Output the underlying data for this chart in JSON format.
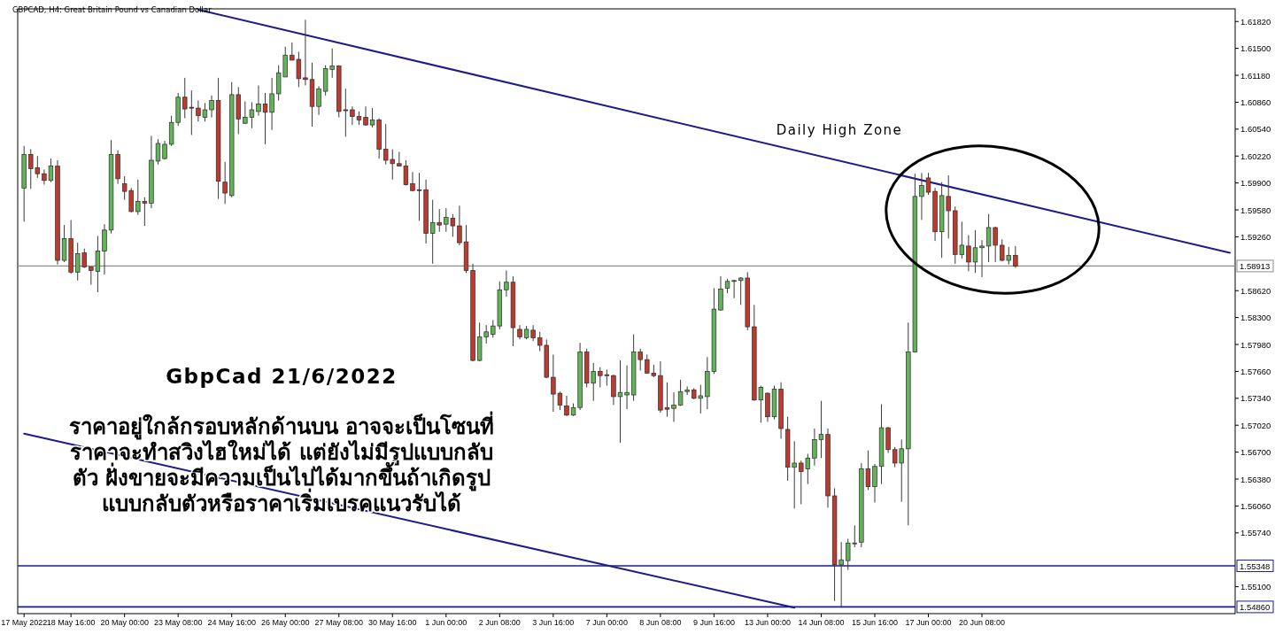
{
  "chart_data": {
    "type": "candlestick",
    "title": "GBPCAD, H4:  Great Britain Pound vs Canadian Dollar",
    "subtitle": "GbpCad 21/6/2022",
    "annotations": [
      "Daily High Zone",
      "ราคาอยู่ใกล้กรอบหลักด้านบน อาจจะเป็นโซนที่\nราคาจะทำสวิงไฮใหม่ได้ แต่ยังไม่มีรูปแบบกลับ\nตัว ฝั่งขายจะมีความเป็นไปได้มากขึ้นถ้าเกิดรูป\nแบบกลับตัวหรือราคาเริ่มเบรคแนวรับได้"
    ],
    "categories": [
      "17 May 2022",
      null,
      null,
      null,
      null,
      null,
      null,
      "18 May 16:00",
      null,
      null,
      null,
      null,
      null,
      null,
      null,
      "20 May 00:00",
      null,
      null,
      null,
      null,
      null,
      null,
      null,
      "23 May 08:00",
      null,
      null,
      null,
      null,
      null,
      null,
      null,
      "24 May 16:00",
      null,
      null,
      null,
      null,
      null,
      null,
      null,
      "26 May 00:00",
      null,
      null,
      null,
      null,
      null,
      null,
      null,
      "27 May 08:00",
      null,
      null,
      null,
      null,
      null,
      null,
      null,
      "30 May 16:00",
      null,
      null,
      null,
      null,
      null,
      null,
      null,
      "1 Jun 00:00",
      null,
      null,
      null,
      null,
      null,
      null,
      null,
      "2 Jun 08:00",
      null,
      null,
      null,
      null,
      null,
      null,
      null,
      "3 Jun 16:00",
      null,
      null,
      null,
      null,
      null,
      null,
      null,
      "7 Jun 00:00",
      null,
      null,
      null,
      null,
      null,
      null,
      null,
      "8 Jun 08:00",
      null,
      null,
      null,
      null,
      null,
      null,
      null,
      "9 Jun 16:00",
      null,
      null,
      null,
      null,
      null,
      null,
      null,
      "13 Jun 00:00",
      null,
      null,
      null,
      null,
      null,
      null,
      null,
      "14 Jun 08:00",
      null,
      null,
      null,
      null,
      null,
      null,
      null,
      "15 Jun 16:00",
      null,
      null,
      null,
      null,
      null,
      null,
      null,
      "17 Jun 00:00",
      null,
      null,
      null,
      null,
      null,
      null,
      null,
      "20 Jun 08:00",
      null,
      null,
      null,
      null,
      null,
      null,
      null,
      null,
      null,
      null,
      null,
      null,
      null,
      null,
      null,
      null,
      null,
      null,
      null,
      null,
      null,
      null,
      null,
      null,
      null,
      null,
      null,
      null,
      null,
      null,
      null,
      null,
      null,
      null,
      null,
      null,
      null
    ],
    "ohlc": [
      [
        1.5984,
        1.6034,
        1.5944,
        1.6024
      ],
      [
        1.6024,
        1.603,
        1.5983,
        1.6007
      ],
      [
        1.6008,
        1.6022,
        1.5996,
        1.6001
      ],
      [
        1.6001,
        1.6006,
        1.5988,
        1.5993
      ],
      [
        1.5993,
        1.6019,
        1.5991,
        1.601
      ],
      [
        1.601,
        1.6017,
        1.5893,
        1.5898
      ],
      [
        1.5898,
        1.594,
        1.5896,
        1.5924
      ],
      [
        1.5924,
        1.5946,
        1.5882,
        1.5884
      ],
      [
        1.5884,
        1.5919,
        1.5874,
        1.5906
      ],
      [
        1.5907,
        1.5912,
        1.5889,
        1.589
      ],
      [
        1.589,
        1.589,
        1.5869,
        1.5886
      ],
      [
        1.5885,
        1.5927,
        1.586,
        1.5909
      ],
      [
        1.5909,
        1.5941,
        1.5881,
        1.5934
      ],
      [
        1.5934,
        1.6041,
        1.593,
        1.6024
      ],
      [
        1.6024,
        1.6029,
        1.5989,
        1.5995
      ],
      [
        1.5989,
        1.5998,
        1.597,
        1.598
      ],
      [
        1.5981,
        1.5984,
        1.5955,
        1.5956
      ],
      [
        1.5956,
        1.5994,
        1.5952,
        1.5968
      ],
      [
        1.5968,
        1.5973,
        1.5939,
        1.5966
      ],
      [
        1.5966,
        1.6046,
        1.596,
        1.6017
      ],
      [
        1.6016,
        1.6042,
        1.6012,
        1.6037
      ],
      [
        1.6019,
        1.604,
        1.6018,
        1.6036
      ],
      [
        1.6036,
        1.607,
        1.6034,
        1.6062
      ],
      [
        1.6062,
        1.6097,
        1.6058,
        1.6092
      ],
      [
        1.6092,
        1.6115,
        1.6067,
        1.6078
      ],
      [
        1.608,
        1.61,
        1.6047,
        1.6079
      ],
      [
        1.6079,
        1.6088,
        1.6063,
        1.607
      ],
      [
        1.6068,
        1.6085,
        1.6063,
        1.6077
      ],
      [
        1.6077,
        1.6094,
        1.6068,
        1.6088
      ],
      [
        1.6088,
        1.6115,
        1.5971,
        1.5992
      ],
      [
        1.5991,
        1.6015,
        1.5965,
        1.5978
      ],
      [
        1.5975,
        1.611,
        1.5973,
        1.6095
      ],
      [
        1.6095,
        1.6104,
        1.6048,
        1.6066
      ],
      [
        1.6061,
        1.6087,
        1.606,
        1.6068
      ],
      [
        1.6068,
        1.6086,
        1.6055,
        1.6077
      ],
      [
        1.6075,
        1.6106,
        1.607,
        1.6084
      ],
      [
        1.6084,
        1.6097,
        1.6036,
        1.6074
      ],
      [
        1.6074,
        1.6115,
        1.6053,
        1.6096
      ],
      [
        1.6096,
        1.613,
        1.6088,
        1.6121
      ],
      [
        1.6116,
        1.6152,
        1.6116,
        1.6142
      ],
      [
        1.6142,
        1.6157,
        1.6136,
        1.6136
      ],
      [
        1.6137,
        1.6146,
        1.6104,
        1.6114
      ],
      [
        1.6115,
        1.6184,
        1.6106,
        1.6113
      ],
      [
        1.6113,
        1.6133,
        1.6057,
        1.6081
      ],
      [
        1.6081,
        1.6105,
        1.6071,
        1.6102
      ],
      [
        1.6099,
        1.613,
        1.6094,
        1.6126
      ],
      [
        1.6125,
        1.615,
        1.6115,
        1.6129
      ],
      [
        1.6129,
        1.613,
        1.6068,
        1.6075
      ],
      [
        1.6077,
        1.6102,
        1.6045,
        1.6076
      ],
      [
        1.6077,
        1.6081,
        1.6059,
        1.6069
      ],
      [
        1.6069,
        1.6075,
        1.6059,
        1.6065
      ],
      [
        1.6068,
        1.6081,
        1.6058,
        1.6059
      ],
      [
        1.6059,
        1.6079,
        1.6056,
        1.6065
      ],
      [
        1.6065,
        1.6067,
        1.6019,
        1.603
      ],
      [
        1.603,
        1.606,
        1.6012,
        1.6017
      ],
      [
        1.6018,
        1.603,
        1.5994,
        1.6013
      ],
      [
        1.6013,
        1.6027,
        1.601,
        1.601
      ],
      [
        1.601,
        1.6017,
        1.5987,
        1.5988
      ],
      [
        1.5989,
        1.6003,
        1.598,
        1.5981
      ],
      [
        1.5982,
        1.6002,
        1.5945,
        1.5981
      ],
      [
        1.5982,
        1.5994,
        1.5918,
        1.593
      ],
      [
        1.593,
        1.597,
        1.5894,
        1.5943
      ],
      [
        1.5943,
        1.5959,
        1.5932,
        1.594
      ],
      [
        1.5941,
        1.596,
        1.5932,
        1.5949
      ],
      [
        1.5948,
        1.5953,
        1.5926,
        1.5939
      ],
      [
        1.5939,
        1.5963,
        1.5916,
        1.5919
      ],
      [
        1.592,
        1.594,
        1.5883,
        1.5886
      ],
      [
        1.5886,
        1.5894,
        1.5778,
        1.5779
      ],
      [
        1.5779,
        1.5824,
        1.5778,
        1.5807
      ],
      [
        1.5807,
        1.5821,
        1.5799,
        1.5813
      ],
      [
        1.581,
        1.5827,
        1.5806,
        1.582
      ],
      [
        1.582,
        1.5873,
        1.5816,
        1.5863
      ],
      [
        1.5863,
        1.5886,
        1.5855,
        1.5872
      ],
      [
        1.5872,
        1.5879,
        1.5796,
        1.5818
      ],
      [
        1.5816,
        1.5821,
        1.5804,
        1.5807
      ],
      [
        1.5806,
        1.582,
        1.5804,
        1.5816
      ],
      [
        1.5815,
        1.5821,
        1.5802,
        1.5806
      ],
      [
        1.5806,
        1.5813,
        1.579,
        1.5797
      ],
      [
        1.5797,
        1.5804,
        1.5758,
        1.5759
      ],
      [
        1.5759,
        1.5786,
        1.5718,
        1.5739
      ],
      [
        1.574,
        1.5742,
        1.572,
        1.5726
      ],
      [
        1.5725,
        1.5737,
        1.5713,
        1.5714
      ],
      [
        1.5714,
        1.5728,
        1.5713,
        1.5723
      ],
      [
        1.5723,
        1.58,
        1.572,
        1.5789
      ],
      [
        1.5789,
        1.5793,
        1.5747,
        1.5752
      ],
      [
        1.5752,
        1.5776,
        1.5731,
        1.5766
      ],
      [
        1.5766,
        1.5771,
        1.5747,
        1.5761
      ],
      [
        1.5762,
        1.5768,
        1.5749,
        1.5761
      ],
      [
        1.5761,
        1.5762,
        1.5726,
        1.5736
      ],
      [
        1.5736,
        1.5779,
        1.5681,
        1.5741
      ],
      [
        1.5738,
        1.5773,
        1.5721,
        1.5741
      ],
      [
        1.5738,
        1.581,
        1.5731,
        1.5789
      ],
      [
        1.5789,
        1.5793,
        1.5767,
        1.578
      ],
      [
        1.578,
        1.5786,
        1.5763,
        1.5764
      ],
      [
        1.5764,
        1.5774,
        1.5759,
        1.5761
      ],
      [
        1.5761,
        1.5778,
        1.5717,
        1.572
      ],
      [
        1.5723,
        1.5753,
        1.5712,
        1.5721
      ],
      [
        1.5722,
        1.5741,
        1.5706,
        1.5726
      ],
      [
        1.5726,
        1.5756,
        1.5725,
        1.5742
      ],
      [
        1.5742,
        1.5748,
        1.5738,
        1.5744
      ],
      [
        1.5744,
        1.5746,
        1.5733,
        1.5734
      ],
      [
        1.5734,
        1.575,
        1.5716,
        1.5737
      ],
      [
        1.5736,
        1.5783,
        1.5721,
        1.5766
      ],
      [
        1.5766,
        1.5865,
        1.5763,
        1.584
      ],
      [
        1.5839,
        1.5879,
        1.5838,
        1.5864
      ],
      [
        1.5865,
        1.5876,
        1.5859,
        1.5873
      ],
      [
        1.5873,
        1.5875,
        1.5853,
        1.5874
      ],
      [
        1.5874,
        1.5878,
        1.5845,
        1.5877
      ],
      [
        1.5877,
        1.5884,
        1.5815,
        1.5819
      ],
      [
        1.5819,
        1.5845,
        1.5731,
        1.5732
      ],
      [
        1.5732,
        1.5749,
        1.5705,
        1.5747
      ],
      [
        1.574,
        1.5741,
        1.5706,
        1.5712
      ],
      [
        1.5712,
        1.5749,
        1.5709,
        1.5745
      ],
      [
        1.5745,
        1.5753,
        1.5686,
        1.5698
      ],
      [
        1.5697,
        1.5712,
        1.5636,
        1.5652
      ],
      [
        1.5652,
        1.5683,
        1.5603,
        1.5657
      ],
      [
        1.5657,
        1.566,
        1.5608,
        1.5647
      ],
      [
        1.565,
        1.5668,
        1.5632,
        1.5663
      ],
      [
        1.5663,
        1.5698,
        1.5654,
        1.5685
      ],
      [
        1.5685,
        1.5731,
        1.5663,
        1.5691
      ],
      [
        1.5691,
        1.5698,
        1.5604,
        1.5618
      ],
      [
        1.5618,
        1.5627,
        1.5493,
        1.5536
      ],
      [
        1.5536,
        1.5563,
        1.5485,
        1.5542
      ],
      [
        1.5541,
        1.5567,
        1.553,
        1.5562
      ],
      [
        1.5561,
        1.5583,
        1.5557,
        1.5562
      ],
      [
        1.5563,
        1.5657,
        1.5557,
        1.565
      ],
      [
        1.565,
        1.5672,
        1.5625,
        1.5629
      ],
      [
        1.5629,
        1.5656,
        1.561,
        1.5653
      ],
      [
        1.5653,
        1.5727,
        1.5632,
        1.5699
      ],
      [
        1.5699,
        1.57,
        1.5669,
        1.5673
      ],
      [
        1.5673,
        1.5676,
        1.5652,
        1.5657
      ],
      [
        1.5657,
        1.5685,
        1.5611,
        1.5674
      ],
      [
        1.5674,
        1.5824,
        1.5583,
        1.5789
      ],
      [
        1.5789,
        1.6001,
        1.5789,
        1.5974
      ],
      [
        1.5974,
        1.6002,
        1.5946,
        1.5987
      ],
      [
        1.5996,
        1.6002,
        1.5976,
        1.5979
      ],
      [
        1.598,
        1.5984,
        1.5921,
        1.5932
      ],
      [
        1.5932,
        1.5991,
        1.5901,
        1.5975
      ],
      [
        1.5974,
        1.5999,
        1.5924,
        1.5957
      ],
      [
        1.5957,
        1.5962,
        1.5894,
        1.5905
      ],
      [
        1.5905,
        1.5944,
        1.59,
        1.5916
      ],
      [
        1.5915,
        1.5928,
        1.5885,
        1.5896
      ],
      [
        1.5896,
        1.5934,
        1.5883,
        1.5913
      ],
      [
        1.5913,
        1.5922,
        1.5878,
        1.5915
      ],
      [
        1.5915,
        1.5953,
        1.5896,
        1.5937
      ],
      [
        1.5937,
        1.5938,
        1.5896,
        1.5916
      ],
      [
        1.5916,
        1.5923,
        1.5897,
        1.5898
      ],
      [
        1.5898,
        1.5914,
        1.5893,
        1.5904
      ],
      [
        1.5904,
        1.5915,
        1.5889,
        1.5891
      ],
      null,
      null,
      null,
      null,
      null,
      null,
      null,
      null,
      null,
      null,
      null,
      null,
      null,
      null,
      null,
      null,
      null,
      null,
      null,
      null,
      null,
      null,
      null,
      null,
      null,
      null,
      null,
      null,
      null,
      null,
      null,
      null
    ],
    "colors": [
      "#62b35a",
      "#bf3a2e",
      "#bf3a2e",
      "#bf3a2e",
      "#62b35a",
      "#bf3a2e",
      "#62b35a",
      "#bf3a2e",
      "#62b35a",
      "#bf3a2e",
      "#bf3a2e",
      "#62b35a",
      "#62b35a",
      "#62b35a",
      "#bf3a2e",
      "#bf3a2e",
      "#bf3a2e",
      "#62b35a",
      "#bf3a2e",
      "#62b35a",
      "#62b35a",
      "#62b35a",
      "#62b35a",
      "#62b35a",
      "#bf3a2e",
      "#bf3a2e",
      "#bf3a2e",
      "#62b35a",
      "#62b35a",
      "#bf3a2e",
      "#bf3a2e",
      "#62b35a",
      "#bf3a2e",
      "#62b35a",
      "#62b35a",
      "#62b35a",
      "#bf3a2e",
      "#62b35a",
      "#62b35a",
      "#62b35a",
      "#bf3a2e",
      "#bf3a2e",
      "#bf3a2e",
      "#bf3a2e",
      "#62b35a",
      "#62b35a",
      "#62b35a",
      "#bf3a2e",
      "#bf3a2e",
      "#bf3a2e",
      "#bf3a2e",
      "#bf3a2e",
      "#62b35a",
      "#bf3a2e",
      "#bf3a2e",
      "#bf3a2e",
      "#bf3a2e",
      "#bf3a2e",
      "#bf3a2e",
      "#bf3a2e",
      "#bf3a2e",
      "#62b35a",
      "#bf3a2e",
      "#62b35a",
      "#bf3a2e",
      "#bf3a2e",
      "#bf3a2e",
      "#bf3a2e",
      "#62b35a",
      "#62b35a",
      "#62b35a",
      "#62b35a",
      "#62b35a",
      "#bf3a2e",
      "#bf3a2e",
      "#62b35a",
      "#bf3a2e",
      "#bf3a2e",
      "#bf3a2e",
      "#bf3a2e",
      "#bf3a2e",
      "#bf3a2e",
      "#62b35a",
      "#62b35a",
      "#bf3a2e",
      "#62b35a",
      "#bf3a2e",
      "#bf3a2e",
      "#bf3a2e",
      "#62b35a",
      "#62b35a",
      "#62b35a",
      "#bf3a2e",
      "#bf3a2e",
      "#bf3a2e",
      "#bf3a2e",
      "#bf3a2e",
      "#62b35a",
      "#62b35a",
      "#62b35a",
      "#bf3a2e",
      "#62b35a",
      "#62b35a",
      "#62b35a",
      "#62b35a",
      "#62b35a",
      "#62b35a",
      "#62b35a",
      "#bf3a2e",
      "#bf3a2e",
      "#62b35a",
      "#bf3a2e",
      "#62b35a",
      "#bf3a2e",
      "#bf3a2e",
      "#62b35a",
      "#bf3a2e",
      "#62b35a",
      "#62b35a",
      "#62b35a",
      "#bf3a2e",
      "#bf3a2e",
      "#62b35a",
      "#62b35a",
      "#62b35a",
      "#62b35a",
      "#bf3a2e",
      "#62b35a",
      "#62b35a",
      "#bf3a2e",
      "#bf3a2e",
      "#62b35a",
      "#62b35a",
      "#62b35a",
      "#62b35a",
      "#bf3a2e",
      "#bf3a2e",
      "#62b35a",
      "#bf3a2e",
      "#bf3a2e",
      "#62b35a",
      "#bf3a2e",
      "#62b35a",
      "#62b35a",
      "#62b35a",
      "#bf3a2e",
      "#bf3a2e",
      "#62b35a",
      "#bf3a2e",
      null,
      null,
      null,
      null,
      null,
      null,
      null,
      null,
      null,
      null,
      null,
      null,
      null,
      null,
      null,
      null,
      null,
      null,
      null,
      null,
      null,
      null,
      null,
      null,
      null,
      null,
      null,
      null,
      null,
      null,
      null,
      null
    ],
    "series": [
      {
        "type": "line",
        "color": "#1c1c8a",
        "line_style": "solid",
        "values": [
          null,
          null,
          null,
          null,
          null,
          null,
          null,
          null,
          null,
          null,
          null,
          null,
          null,
          null,
          null,
          null,
          null,
          null,
          null,
          null,
          null,
          null,
          null,
          null,
          null,
          null,
          1.6196,
          null,
          null,
          null,
          null,
          null,
          null,
          null,
          null,
          null,
          null,
          null,
          null,
          null,
          null,
          null,
          null,
          null,
          null,
          null,
          null,
          null,
          null,
          null,
          null,
          null,
          null,
          null,
          null,
          null,
          null,
          null,
          null,
          null,
          null,
          null,
          null,
          null,
          null,
          null,
          null,
          null,
          null,
          null,
          null,
          null,
          null,
          null,
          null,
          null,
          null,
          null,
          null,
          null,
          null,
          null,
          null,
          null,
          null,
          null,
          null,
          null,
          null,
          null,
          null,
          null,
          null,
          null,
          null,
          null,
          null,
          null,
          null,
          null,
          null,
          null,
          null,
          null,
          null,
          null,
          null,
          null,
          null,
          null,
          null,
          null,
          null,
          null,
          null,
          null,
          null,
          null,
          null,
          null,
          null,
          null,
          null,
          null,
          null,
          null,
          null,
          null,
          null,
          null,
          null,
          null,
          null,
          null,
          null,
          null,
          null,
          null,
          null,
          null,
          null,
          null,
          null,
          null,
          null,
          null,
          null,
          null,
          null,
          null,
          null,
          null,
          null,
          null,
          null,
          null,
          null,
          null,
          null,
          null,
          null,
          null,
          null,
          null,
          null,
          null,
          null,
          null,
          null,
          null,
          null,
          null,
          null,
          null,
          null,
          null,
          null,
          null,
          null,
          null,
          1.5907
        ]
      },
      {
        "type": "line",
        "color": "#1c1c8a",
        "line_style": "solid",
        "values": [
          1.5692,
          null,
          null,
          null,
          null,
          null,
          null,
          null,
          null,
          null,
          null,
          null,
          null,
          null,
          null,
          null,
          null,
          null,
          null,
          null,
          null,
          null,
          null,
          null,
          null,
          null,
          null,
          null,
          null,
          null,
          null,
          null,
          null,
          null,
          null,
          null,
          null,
          null,
          null,
          null,
          null,
          null,
          null,
          null,
          null,
          null,
          null,
          null,
          null,
          null,
          null,
          null,
          null,
          null,
          null,
          null,
          null,
          null,
          null,
          null,
          null,
          null,
          null,
          null,
          null,
          null,
          null,
          null,
          null,
          null,
          null,
          null,
          null,
          null,
          null,
          null,
          null,
          null,
          null,
          null,
          null,
          null,
          null,
          null,
          null,
          null,
          null,
          null,
          null,
          null,
          null,
          null,
          null,
          null,
          null,
          null,
          null,
          null,
          null,
          null,
          null,
          null,
          null,
          null,
          null,
          null,
          null,
          null,
          null,
          null,
          null,
          null,
          null,
          null,
          null,
          1.5485,
          null,
          null,
          null,
          null,
          null,
          null,
          null,
          null,
          null,
          null,
          null,
          null,
          null,
          null,
          null,
          null,
          null,
          null,
          null,
          null,
          null,
          null,
          null,
          null,
          null,
          null,
          null,
          null,
          null,
          null,
          null,
          null,
          null,
          null,
          null,
          null,
          null,
          null,
          null,
          null,
          null,
          null,
          null,
          null,
          null,
          null,
          null,
          null,
          null,
          null,
          null,
          null,
          null,
          null,
          null,
          null,
          null,
          null,
          null,
          null,
          null,
          null,
          null,
          null,
          null
        ]
      }
    ],
    "ylim": [
      1.5478,
      1.6197
    ],
    "yticks": [
      {
        "value": 1.6182,
        "label": "1.61820"
      },
      {
        "value": 1.615,
        "label": "1.61500"
      },
      {
        "value": 1.6118,
        "label": "1.61180"
      },
      {
        "value": 1.6086,
        "label": "1.60860"
      },
      {
        "value": 1.6054,
        "label": "1.60540"
      },
      {
        "value": 1.6022,
        "label": "1.60220"
      },
      {
        "value": 1.599,
        "label": "1.59900"
      },
      {
        "value": 1.5958,
        "label": "1.59580"
      },
      {
        "value": 1.5926,
        "label": "1.59260"
      },
      {
        "value": 1.5862,
        "label": "1.58620"
      },
      {
        "value": 1.583,
        "label": "1.58300"
      },
      {
        "value": 1.5798,
        "label": "1.57980"
      },
      {
        "value": 1.5766,
        "label": "1.57660"
      },
      {
        "value": 1.5734,
        "label": "1.57340"
      },
      {
        "value": 1.5702,
        "label": "1.57020"
      },
      {
        "value": 1.567,
        "label": "1.56700"
      },
      {
        "value": 1.5638,
        "label": "1.56380"
      },
      {
        "value": 1.5606,
        "label": "1.56060"
      },
      {
        "value": 1.5574,
        "label": "1.55740"
      },
      {
        "value": 1.551,
        "label": "1.55100"
      }
    ],
    "ref_lines": [
      {
        "axis": "y",
        "value": 1.58913,
        "label": "1.58913",
        "color": "#8c8c8c"
      },
      {
        "axis": "y",
        "value": 1.55348,
        "label": "1.55348",
        "color": "#1c1c8a"
      },
      {
        "axis": "y",
        "value": 1.5486,
        "label": "1.54860",
        "color": "#1c1c8a"
      }
    ]
  }
}
